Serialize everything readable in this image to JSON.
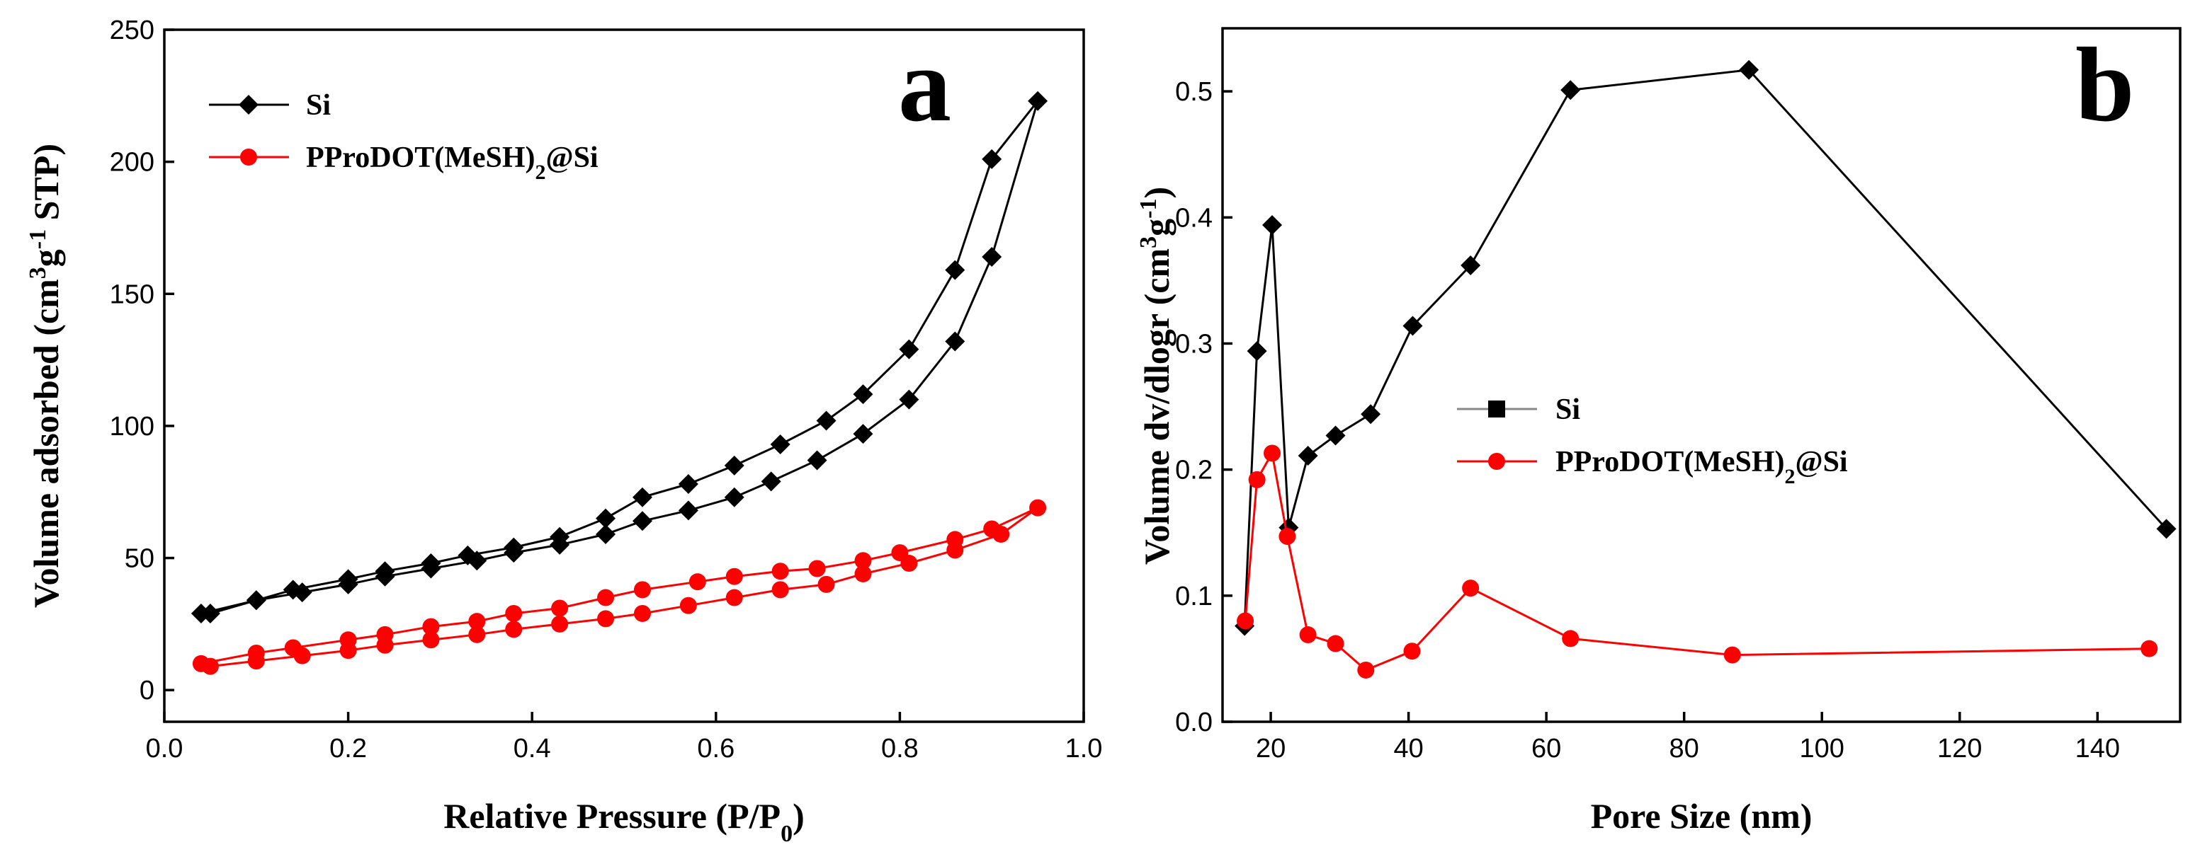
{
  "chart_data": [
    {
      "type": "line",
      "panel_label": "a",
      "xlabel_main": "Relative Pressure (P/P",
      "xlabel_sub": "0",
      "xlabel_end": ")",
      "ylabel_pre": "Volume adsorbed (cm",
      "ylabel_sup1": "3",
      "ylabel_mid": "g",
      "ylabel_sup2": "-1",
      "ylabel_end": " STP)",
      "xlim": [
        0.0,
        1.0
      ],
      "ylim": [
        -12,
        250
      ],
      "xticks": [
        "0.0",
        "0.2",
        "0.4",
        "0.6",
        "0.8",
        "1.0"
      ],
      "xtick_values": [
        0.0,
        0.2,
        0.4,
        0.6,
        0.8,
        1.0
      ],
      "yticks": [
        "0",
        "50",
        "100",
        "150",
        "200",
        "250"
      ],
      "ytick_values": [
        0,
        50,
        100,
        150,
        200,
        250
      ],
      "legend_position": "top-left",
      "series": [
        {
          "name": "Si",
          "name_main": "Si",
          "color": "#000000",
          "marker": "diamond",
          "x": [
            0.05,
            0.1,
            0.15,
            0.2,
            0.24,
            0.29,
            0.34,
            0.38,
            0.43,
            0.48,
            0.52,
            0.57,
            0.62,
            0.66,
            0.71,
            0.76,
            0.81,
            0.86,
            0.9,
            0.95,
            0.9,
            0.86,
            0.81,
            0.76,
            0.72,
            0.67,
            0.62,
            0.57,
            0.52,
            0.48,
            0.43,
            0.38,
            0.33,
            0.29,
            0.24,
            0.2,
            0.14,
            0.1,
            0.04
          ],
          "y": [
            29,
            34,
            37,
            40,
            43,
            46,
            49,
            52,
            55,
            59,
            64,
            68,
            73,
            79,
            87,
            97,
            110,
            132,
            164,
            223,
            201,
            159,
            129,
            112,
            102,
            93,
            85,
            78,
            73,
            65,
            58,
            54,
            51,
            48,
            45,
            42,
            38,
            34,
            29
          ]
        },
        {
          "name": "PProDOT(MeSH)2@Si",
          "name_main": "PProDOT(MeSH)",
          "name_sub": "2",
          "name_end": "@Si",
          "color": "#ff0000",
          "marker": "circle",
          "x": [
            0.05,
            0.1,
            0.15,
            0.2,
            0.24,
            0.29,
            0.34,
            0.38,
            0.43,
            0.48,
            0.52,
            0.57,
            0.62,
            0.67,
            0.72,
            0.76,
            0.81,
            0.86,
            0.91,
            0.95,
            0.9,
            0.86,
            0.8,
            0.76,
            0.71,
            0.67,
            0.62,
            0.58,
            0.52,
            0.48,
            0.43,
            0.38,
            0.34,
            0.29,
            0.24,
            0.2,
            0.14,
            0.1,
            0.04
          ],
          "y": [
            9,
            11,
            13,
            15,
            17,
            19,
            21,
            23,
            25,
            27,
            29,
            32,
            35,
            38,
            40,
            44,
            48,
            53,
            59,
            69,
            61,
            57,
            52,
            49,
            46,
            45,
            43,
            41,
            38,
            35,
            31,
            29,
            26,
            24,
            21,
            19,
            16,
            14,
            10
          ]
        }
      ]
    },
    {
      "type": "line",
      "panel_label": "b",
      "xlabel": "Pore Size (nm)",
      "ylabel_pre": "Volume dv/dlogr (cm",
      "ylabel_sup1": "3",
      "ylabel_mid": "g",
      "ylabel_sup2": "-1",
      "ylabel_end": ")",
      "xlim": [
        13,
        152
      ],
      "ylim": [
        0.0,
        0.55
      ],
      "xticks": [
        "20",
        "40",
        "60",
        "80",
        "100",
        "120",
        "140"
      ],
      "xtick_values": [
        20,
        40,
        60,
        80,
        100,
        120,
        140
      ],
      "yticks": [
        "0.0",
        "0.1",
        "0.2",
        "0.3",
        "0.4",
        "0.5"
      ],
      "ytick_values": [
        0.0,
        0.1,
        0.2,
        0.3,
        0.4,
        0.5
      ],
      "legend_position": "center-left",
      "series": [
        {
          "name": "Si",
          "name_main": "Si",
          "color": "#000000",
          "marker": "diamond",
          "legend_marker": "square",
          "x": [
            16.2,
            18.0,
            20.2,
            22.6,
            25.4,
            29.4,
            34.5,
            40.6,
            49.0,
            63.5,
            89.4,
            150.0
          ],
          "y": [
            0.076,
            0.294,
            0.394,
            0.154,
            0.211,
            0.227,
            0.244,
            0.314,
            0.362,
            0.501,
            0.517,
            0.153
          ]
        },
        {
          "name": "PProDOT(MeSH)2@Si",
          "name_main": "PProDOT(MeSH)",
          "name_sub": "2",
          "name_end": "@Si",
          "color": "#ff0000",
          "marker": "circle",
          "x": [
            16.3,
            18.0,
            20.2,
            22.4,
            25.4,
            29.4,
            33.8,
            40.5,
            49.0,
            63.5,
            87.0,
            147.5
          ],
          "y": [
            0.08,
            0.192,
            0.213,
            0.147,
            0.069,
            0.062,
            0.041,
            0.056,
            0.106,
            0.066,
            0.053,
            0.058
          ]
        }
      ]
    }
  ]
}
